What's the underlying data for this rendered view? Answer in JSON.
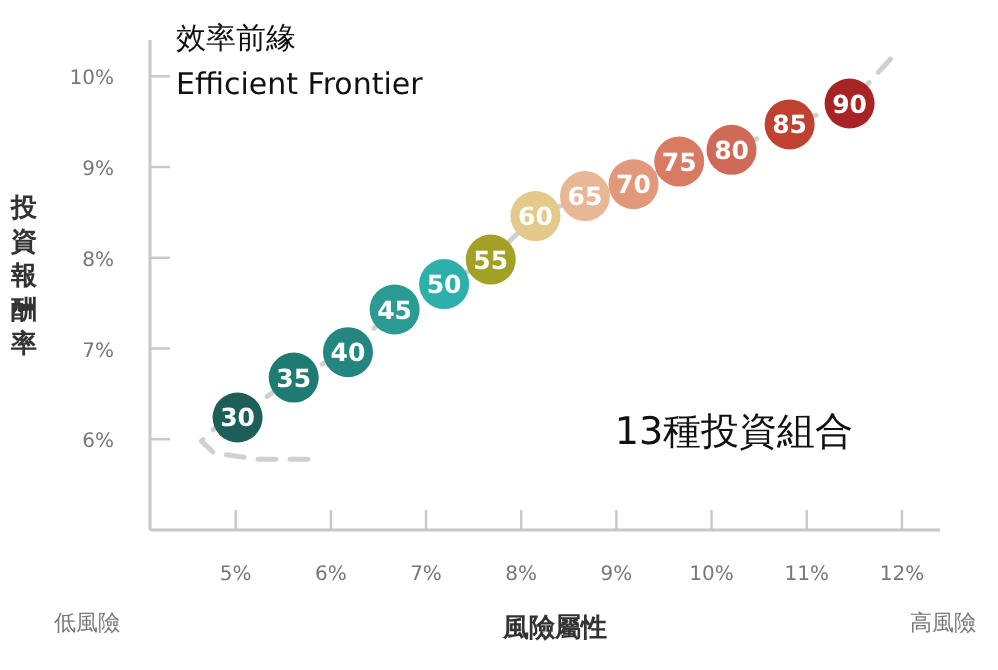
{
  "chart_data": {
    "type": "scatter",
    "title": "效率前緣",
    "subtitle": "Efficient Frontier",
    "xlabel": "風險屬性",
    "ylabel": "投資報酬率",
    "xlim": [
      4.1,
      12.4
    ],
    "ylim": [
      5.0,
      10.4
    ],
    "xticks": [
      {
        "value": 5,
        "label": "5%"
      },
      {
        "value": 6,
        "label": "6%"
      },
      {
        "value": 7,
        "label": "7%"
      },
      {
        "value": 8,
        "label": "8%"
      },
      {
        "value": 9,
        "label": "9%"
      },
      {
        "value": 10,
        "label": "10%"
      },
      {
        "value": 11,
        "label": "11%"
      },
      {
        "value": 12,
        "label": "12%"
      }
    ],
    "yticks": [
      {
        "value": 6,
        "label": "6%"
      },
      {
        "value": 7,
        "label": "7%"
      },
      {
        "value": 8,
        "label": "8%"
      },
      {
        "value": 9,
        "label": "9%"
      },
      {
        "value": 10,
        "label": "10%"
      }
    ],
    "series": [
      {
        "type": "line",
        "color": "#d0d0d0",
        "line_style": "dashed",
        "x": [
          5.76,
          5.23,
          4.77,
          4.64,
          4.81,
          5.02,
          5.61,
          6.18,
          6.67,
          7.19,
          7.68,
          8.15,
          8.67,
          9.18,
          9.66,
          10.21,
          10.82,
          11.45,
          11.88
        ],
        "values": [
          5.78,
          5.78,
          5.85,
          5.98,
          6.15,
          6.24,
          6.68,
          6.96,
          7.43,
          7.71,
          7.98,
          8.46,
          8.68,
          8.81,
          9.06,
          9.19,
          9.47,
          9.7,
          10.19
        ]
      },
      {
        "type": "scatter",
        "marker": "circle",
        "x": [
          5.02,
          5.61,
          6.18,
          6.67,
          7.19,
          7.68,
          8.15,
          8.67,
          9.18,
          9.66,
          10.21,
          10.82,
          11.45
        ],
        "values": [
          6.24,
          6.68,
          6.96,
          7.43,
          7.71,
          7.98,
          8.46,
          8.68,
          8.81,
          9.06,
          9.19,
          9.47,
          9.7
        ],
        "colors": [
          "#1d5e58",
          "#1f7a72",
          "#23877f",
          "#2a9a93",
          "#2eb0aa",
          "#a3a026",
          "#e3c98a",
          "#e8b896",
          "#e2987a",
          "#d97a62",
          "#d06a58",
          "#c0412f",
          "#a82424"
        ]
      }
    ],
    "annotations": [
      {
        "text": "30",
        "x": 5.02,
        "y": 6.24
      },
      {
        "text": "35",
        "x": 5.61,
        "y": 6.68
      },
      {
        "text": "40",
        "x": 6.18,
        "y": 6.96
      },
      {
        "text": "45",
        "x": 6.67,
        "y": 7.43
      },
      {
        "text": "50",
        "x": 7.19,
        "y": 7.71
      },
      {
        "text": "55",
        "x": 7.68,
        "y": 7.98
      },
      {
        "text": "60",
        "x": 8.15,
        "y": 8.46
      },
      {
        "text": "65",
        "x": 8.67,
        "y": 8.68
      },
      {
        "text": "70",
        "x": 9.18,
        "y": 8.81
      },
      {
        "text": "75",
        "x": 9.66,
        "y": 9.06
      },
      {
        "text": "80",
        "x": 10.21,
        "y": 9.19
      },
      {
        "text": "85",
        "x": 10.82,
        "y": 9.47
      },
      {
        "text": "90",
        "x": 11.45,
        "y": 9.7
      },
      "13種投資組合",
      "低風險",
      "高風險"
    ]
  }
}
